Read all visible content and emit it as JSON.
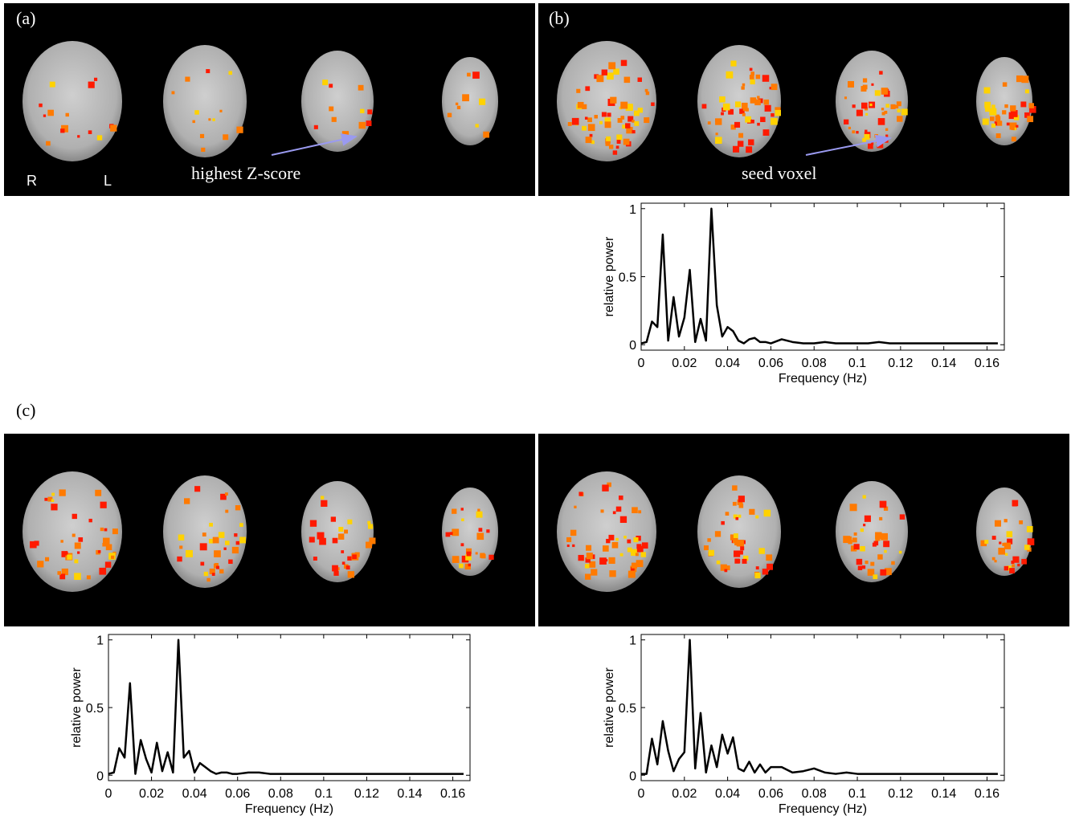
{
  "figure": {
    "panel_labels": [
      "(a)",
      "(b)",
      "(c)"
    ],
    "hemisphere_labels": [
      "R",
      "L"
    ],
    "annotations": [
      "highest Z-score",
      "seed voxel"
    ]
  },
  "chart_data": [
    {
      "type": "line",
      "xlabel": "Frequency (Hz)",
      "ylabel": "relative power",
      "color": "#000000",
      "x": [
        0,
        0.0025,
        0.005,
        0.0075,
        0.01,
        0.0125,
        0.015,
        0.0175,
        0.02,
        0.0225,
        0.025,
        0.0275,
        0.03,
        0.0325,
        0.035,
        0.0375,
        0.04,
        0.0425,
        0.045,
        0.0475,
        0.05,
        0.0525,
        0.055,
        0.0575,
        0.06,
        0.065,
        0.07,
        0.075,
        0.08,
        0.085,
        0.09,
        0.095,
        0.1,
        0.105,
        0.11,
        0.115,
        0.12,
        0.125,
        0.13,
        0.135,
        0.14,
        0.145,
        0.15,
        0.155,
        0.16,
        0.165
      ],
      "values": [
        0.01,
        0.02,
        0.17,
        0.13,
        0.81,
        0.03,
        0.35,
        0.06,
        0.2,
        0.55,
        0.02,
        0.19,
        0.03,
        1.0,
        0.29,
        0.06,
        0.13,
        0.1,
        0.03,
        0.01,
        0.04,
        0.05,
        0.02,
        0.02,
        0.01,
        0.04,
        0.02,
        0.01,
        0.01,
        0.02,
        0.01,
        0.01,
        0.01,
        0.01,
        0.02,
        0.01,
        0.01,
        0.01,
        0.01,
        0.01,
        0.01,
        0.01,
        0.01,
        0.01,
        0.01,
        0.01
      ],
      "xlim": [
        0,
        0.168
      ],
      "ylim": [
        -0.04,
        1.04
      ],
      "xticks": [
        0,
        0.02,
        0.04,
        0.06,
        0.08,
        0.1,
        0.12,
        0.14,
        0.16
      ],
      "yticks": [
        0,
        0.5,
        1
      ]
    },
    {
      "type": "line",
      "xlabel": "Frequency (Hz)",
      "ylabel": "relative power",
      "color": "#000000",
      "x": [
        0,
        0.0025,
        0.005,
        0.0075,
        0.01,
        0.0125,
        0.015,
        0.0175,
        0.02,
        0.0225,
        0.025,
        0.0275,
        0.03,
        0.0325,
        0.035,
        0.0375,
        0.04,
        0.0425,
        0.045,
        0.0475,
        0.05,
        0.0525,
        0.055,
        0.0575,
        0.06,
        0.065,
        0.07,
        0.075,
        0.08,
        0.085,
        0.09,
        0.095,
        0.1,
        0.105,
        0.11,
        0.115,
        0.12,
        0.125,
        0.13,
        0.135,
        0.14,
        0.145,
        0.15,
        0.155,
        0.16,
        0.165
      ],
      "values": [
        0.01,
        0.02,
        0.2,
        0.13,
        0.68,
        0.01,
        0.26,
        0.12,
        0.02,
        0.24,
        0.03,
        0.17,
        0.02,
        1.0,
        0.13,
        0.18,
        0.02,
        0.09,
        0.06,
        0.03,
        0.01,
        0.02,
        0.02,
        0.01,
        0.01,
        0.02,
        0.02,
        0.01,
        0.01,
        0.01,
        0.01,
        0.01,
        0.01,
        0.01,
        0.01,
        0.01,
        0.01,
        0.01,
        0.01,
        0.01,
        0.01,
        0.01,
        0.01,
        0.01,
        0.01,
        0.01
      ],
      "xlim": [
        0,
        0.168
      ],
      "ylim": [
        -0.04,
        1.04
      ],
      "xticks": [
        0,
        0.02,
        0.04,
        0.06,
        0.08,
        0.1,
        0.12,
        0.14,
        0.16
      ],
      "yticks": [
        0,
        0.5,
        1
      ]
    },
    {
      "type": "line",
      "xlabel": "Frequency (Hz)",
      "ylabel": "relative power",
      "color": "#000000",
      "x": [
        0,
        0.0025,
        0.005,
        0.0075,
        0.01,
        0.0125,
        0.015,
        0.0175,
        0.02,
        0.0225,
        0.025,
        0.0275,
        0.03,
        0.0325,
        0.035,
        0.0375,
        0.04,
        0.0425,
        0.045,
        0.0475,
        0.05,
        0.0525,
        0.055,
        0.0575,
        0.06,
        0.065,
        0.07,
        0.075,
        0.08,
        0.085,
        0.09,
        0.095,
        0.1,
        0.105,
        0.11,
        0.115,
        0.12,
        0.125,
        0.13,
        0.135,
        0.14,
        0.145,
        0.15,
        0.155,
        0.16,
        0.165
      ],
      "values": [
        0.01,
        0.01,
        0.27,
        0.08,
        0.4,
        0.18,
        0.03,
        0.12,
        0.17,
        1.0,
        0.05,
        0.46,
        0.02,
        0.22,
        0.06,
        0.3,
        0.16,
        0.28,
        0.05,
        0.03,
        0.1,
        0.02,
        0.08,
        0.02,
        0.06,
        0.06,
        0.02,
        0.03,
        0.05,
        0.02,
        0.01,
        0.02,
        0.01,
        0.01,
        0.01,
        0.01,
        0.01,
        0.01,
        0.01,
        0.01,
        0.01,
        0.01,
        0.01,
        0.01,
        0.01,
        0.01
      ],
      "xlim": [
        0,
        0.168
      ],
      "ylim": [
        -0.04,
        1.04
      ],
      "xticks": [
        0,
        0.02,
        0.04,
        0.06,
        0.08,
        0.1,
        0.12,
        0.14,
        0.16
      ],
      "yticks": [
        0,
        0.5,
        1
      ]
    }
  ]
}
